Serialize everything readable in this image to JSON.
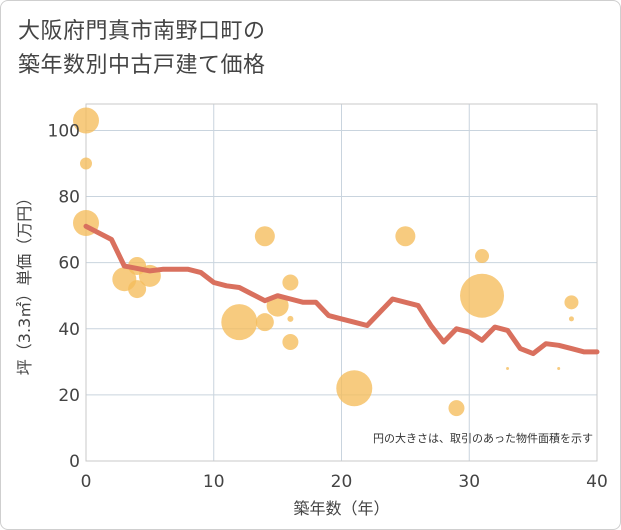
{
  "title_lines": [
    "大阪府門真市南野口町の",
    "築年数別中古戸建て価格"
  ],
  "chart_data": {
    "type": "scatter",
    "xlabel": "築年数（年）",
    "ylabel": "坪（3.3㎡）単価（万円）",
    "xlim": [
      0,
      40
    ],
    "ylim": [
      0,
      108
    ],
    "x_ticks": [
      0,
      10,
      20,
      30,
      40
    ],
    "y_ticks": [
      0,
      20,
      40,
      60,
      80,
      100
    ],
    "grid": true,
    "note": "円の大きさは、取引のあった物件面積を示す",
    "colors": {
      "bubble": "#f5bd5b",
      "line": "#d9705e",
      "grid": "#c9d4de",
      "plot_border": "#c9c9c9"
    },
    "bubbles": [
      {
        "x": 0,
        "y": 103,
        "size": 13
      },
      {
        "x": 0,
        "y": 90,
        "size": 6
      },
      {
        "x": 0,
        "y": 72,
        "size": 13
      },
      {
        "x": 3,
        "y": 55,
        "size": 12
      },
      {
        "x": 4,
        "y": 59,
        "size": 9
      },
      {
        "x": 4,
        "y": 52,
        "size": 9
      },
      {
        "x": 5,
        "y": 56,
        "size": 11
      },
      {
        "x": 12,
        "y": 42,
        "size": 18
      },
      {
        "x": 14,
        "y": 68,
        "size": 10
      },
      {
        "x": 14,
        "y": 42,
        "size": 9
      },
      {
        "x": 15,
        "y": 47,
        "size": 11
      },
      {
        "x": 16,
        "y": 54,
        "size": 8
      },
      {
        "x": 16,
        "y": 43,
        "size": 3
      },
      {
        "x": 16,
        "y": 36,
        "size": 8
      },
      {
        "x": 21,
        "y": 22,
        "size": 18
      },
      {
        "x": 25,
        "y": 68,
        "size": 10
      },
      {
        "x": 29,
        "y": 16,
        "size": 8
      },
      {
        "x": 31,
        "y": 62,
        "size": 7
      },
      {
        "x": 31,
        "y": 50,
        "size": 22
      },
      {
        "x": 33,
        "y": 28,
        "size": 1.5
      },
      {
        "x": 37,
        "y": 28,
        "size": 1.5
      },
      {
        "x": 38,
        "y": 48,
        "size": 7
      },
      {
        "x": 38,
        "y": 43,
        "size": 2.5
      }
    ],
    "trend": {
      "name": "",
      "x": [
        0,
        2,
        3,
        5,
        6,
        8,
        9,
        10,
        11,
        12,
        13,
        14,
        15,
        16,
        17,
        18,
        19,
        20,
        21,
        22,
        24,
        26,
        27,
        28,
        29,
        30,
        31,
        32,
        33,
        34,
        35,
        36,
        37,
        38,
        39,
        40
      ],
      "y": [
        71,
        67,
        59,
        57.5,
        58,
        58,
        57,
        54,
        53,
        52.5,
        50.5,
        48.5,
        50,
        49,
        48,
        48,
        44,
        43,
        42,
        41,
        49,
        47,
        41,
        36,
        40,
        39,
        36.5,
        40.5,
        39.5,
        34,
        32.5,
        35.5,
        35,
        34,
        33,
        33
      ]
    }
  }
}
